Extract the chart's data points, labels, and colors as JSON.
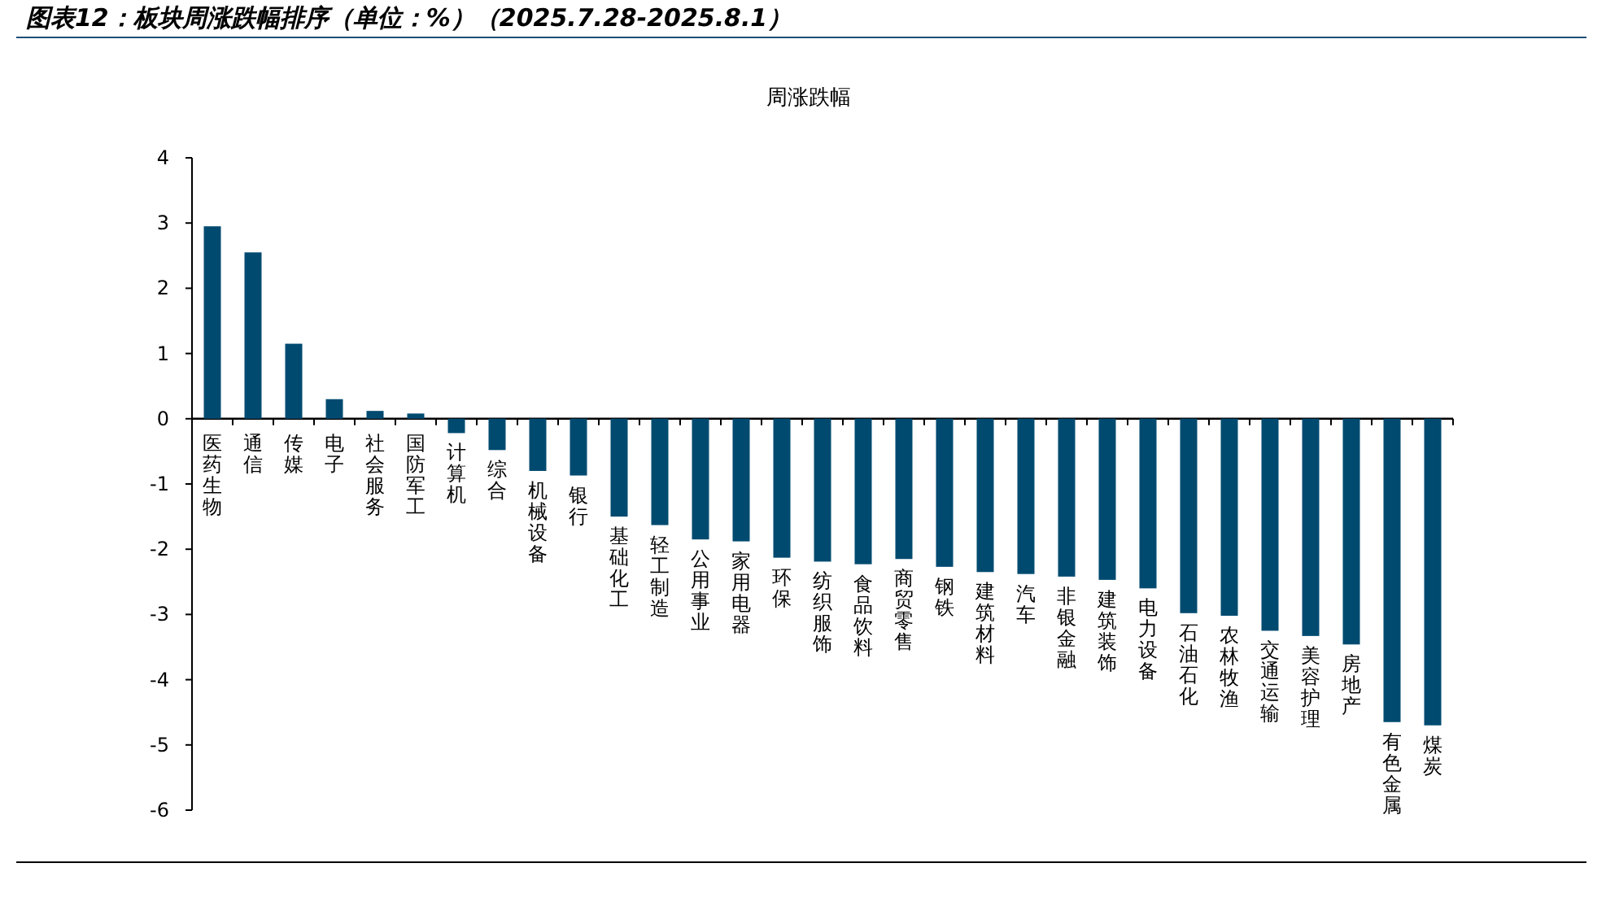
{
  "chart_data": {
    "type": "bar",
    "title": "图表12：板块周涨跌幅排序（单位：%）（2025.7.28-2025.8.1）",
    "subtitle": "周涨跌幅",
    "categories": [
      "医药生物",
      "通信",
      "传媒",
      "电子",
      "社会服务",
      "国防军工",
      "计算机",
      "综合",
      "机械设备",
      "银行",
      "基础化工",
      "轻工制造",
      "公用事业",
      "家用电器",
      "环保",
      "纺织服饰",
      "食品饮料",
      "商贸零售",
      "钢铁",
      "建筑材料",
      "汽车",
      "非银金融",
      "建筑装饰",
      "电力设备",
      "石油石化",
      "农林牧渔",
      "交通运输",
      "美容护理",
      "房地产",
      "有色金属",
      "煤炭"
    ],
    "values": [
      2.95,
      2.55,
      1.15,
      0.3,
      0.12,
      0.08,
      -0.22,
      -0.48,
      -0.8,
      -0.87,
      -1.5,
      -1.63,
      -1.85,
      -1.88,
      -2.13,
      -2.19,
      -2.23,
      -2.15,
      -2.27,
      -2.35,
      -2.38,
      -2.42,
      -2.47,
      -2.6,
      -2.98,
      -3.02,
      -3.25,
      -3.33,
      -3.46,
      -4.65,
      -4.7
    ],
    "color": "#004a70",
    "ylim": [
      -6,
      4
    ],
    "yticks": [
      -6,
      -5,
      -4,
      -3,
      -2,
      -1,
      0,
      1,
      2,
      3,
      4
    ],
    "tick_labels": true
  }
}
